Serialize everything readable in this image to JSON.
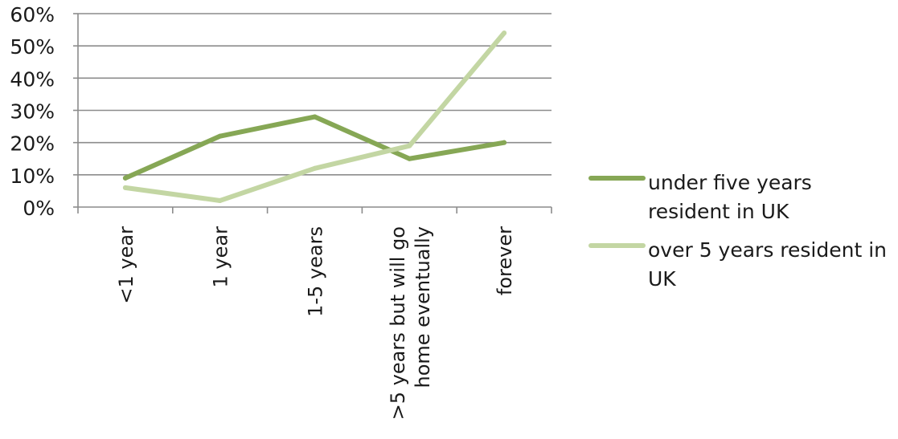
{
  "chart_data": {
    "type": "line",
    "categories": [
      [
        "<1 year"
      ],
      [
        "1 year"
      ],
      [
        "1-5 years"
      ],
      [
        ">5 years but will go",
        "home eventually"
      ],
      [
        "forever"
      ]
    ],
    "series": [
      {
        "name": [
          "under five years",
          "resident in UK"
        ],
        "values": [
          9,
          22,
          28,
          15,
          20
        ],
        "color": "#86a755"
      },
      {
        "name": [
          "over 5 years resident in",
          "UK"
        ],
        "values": [
          6,
          2,
          12,
          19,
          54
        ],
        "color": "#c3d6a3"
      }
    ],
    "ylim": [
      0,
      60
    ],
    "yticks": [
      0,
      10,
      20,
      30,
      40,
      50,
      60
    ],
    "ytick_format": "percent",
    "grid": true,
    "legend": "right",
    "gridline_color": "#8c8c8c"
  }
}
